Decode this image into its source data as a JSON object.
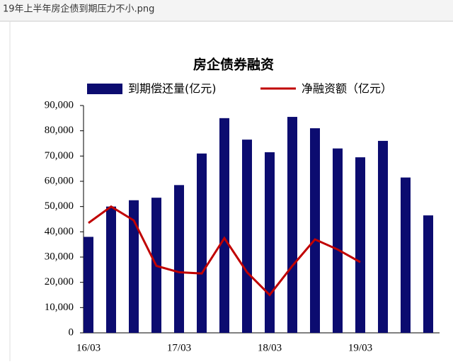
{
  "header": {
    "filename": "19年上半年房企债到期压力不小.png"
  },
  "chart_data": {
    "type": "bar",
    "title": "房企债券融资",
    "categories": [
      "16/03",
      null,
      null,
      null,
      "17/03",
      null,
      null,
      null,
      "18/03",
      null,
      null,
      null,
      "19/03",
      null,
      null,
      null
    ],
    "series": [
      {
        "name": "到期偿还量(亿元)",
        "type": "bar",
        "color": "#0c0c70",
        "values": [
          38000,
          50000,
          52500,
          53500,
          58500,
          71000,
          85000,
          76500,
          71500,
          85500,
          81000,
          73000,
          69500,
          76000,
          61500,
          46500
        ]
      },
      {
        "name": "净融资额（亿元）",
        "type": "line",
        "color": "#c00000",
        "values": [
          43500,
          50000,
          44500,
          26500,
          24000,
          23500,
          37500,
          24000,
          15000,
          26500,
          37000,
          33000,
          28000,
          null,
          null,
          null
        ]
      }
    ],
    "ylim": [
      0,
      90000
    ],
    "yticks": [
      0,
      {
        "value": 10000,
        "label": "10,000"
      },
      {
        "value": 20000,
        "label": "20,000"
      },
      {
        "value": 30000,
        "label": "30,000"
      },
      {
        "value": 40000,
        "label": "40,000"
      },
      {
        "value": 50000,
        "label": "50,000"
      },
      {
        "value": 60000,
        "label": "60,000"
      },
      {
        "value": 70000,
        "label": "70,000"
      },
      {
        "value": 80000,
        "label": "80,000"
      },
      {
        "value": 90000,
        "label": "90,000"
      }
    ],
    "legend": "top"
  }
}
